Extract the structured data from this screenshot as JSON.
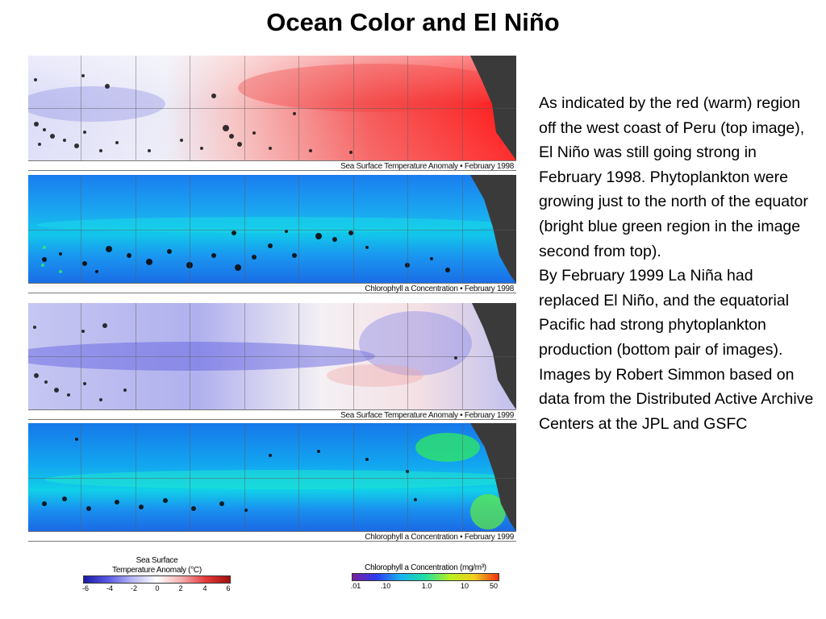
{
  "slide": {
    "title": "Ocean Color and El Niño"
  },
  "panels": [
    {
      "caption": "Sea Surface Temperature Anomaly • February 1998",
      "kind": "sst",
      "base": "#f7d6d6",
      "accent": "#ff2a2a"
    },
    {
      "caption": "Chlorophyll a Concentration • February 1998",
      "kind": "chl",
      "base": "#1f8ff0",
      "accent": "#11cfe6"
    },
    {
      "caption": "Sea Surface Temperature Anomaly • February 1999",
      "kind": "sst99",
      "base": "#eeeefa",
      "accent": "#4444e0"
    },
    {
      "caption": "Chlorophyll a Concentration • February 1999",
      "kind": "chl99",
      "base": "#17a6ee",
      "accent": "#22e38a"
    }
  ],
  "description": {
    "paragraph1": "As indicated by the red (warm) region off the west coast of Peru (top image), El Niño was still going strong in February 1998. Phytoplankton were growing just to the north of the equator (bright blue green region in the image second from top).",
    "paragraph2": "By February 1999 La Niña had replaced El Niño, and the equatorial Pacific had strong phytoplankton production (bottom pair of images).",
    "paragraph3": "Images by Robert Simmon based on data from the Distributed Active Archive Centers at the JPL and GSFC"
  },
  "legend_sst": {
    "title_line1": "Sea Surface",
    "title_line2": "Temperature Anomaly (°C)",
    "ticks": [
      "-6",
      "-4",
      "-2",
      "0",
      "2",
      "4",
      "6"
    ],
    "colors": [
      "#1a1aa8",
      "#5a5ae6",
      "#b8b8f4",
      "#ffffff",
      "#f4b0b0",
      "#e63a3a",
      "#a01010"
    ]
  },
  "legend_chl": {
    "title": "Chlorophyll a Concentration (mg/m³)",
    "ticks": [
      ".01",
      ".10",
      "1.0",
      "10",
      "50"
    ],
    "colors": [
      "#7a1f9c",
      "#2a3cf0",
      "#19b4f0",
      "#20e0a0",
      "#b8f020",
      "#f0d020",
      "#f03010"
    ]
  }
}
